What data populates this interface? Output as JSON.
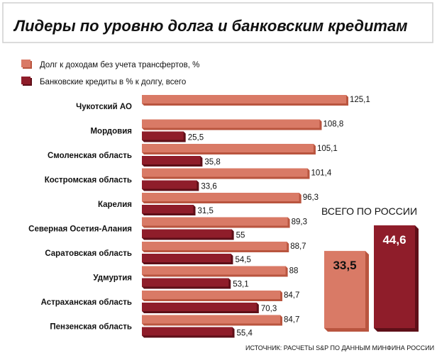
{
  "title": "Лидеры по уровню долга и банковским кредитам",
  "legend": {
    "items": [
      {
        "label": "Долг к доходам без учета трансфертов, %",
        "color": "#d97a66"
      },
      {
        "label": "Банковские кредиты в % к долгу, всего",
        "color": "#8f1d2a"
      }
    ]
  },
  "source": "ИСТОЧНИК: РАСЧЕТЫ S&P ПО ДАННЫМ МИНФИНА РОССИИ",
  "total": {
    "heading": "ВСЕГО ПО РОССИИ",
    "debt_label": "33,5",
    "credit_label": "44,6",
    "debt_value": 33.5,
    "credit_value": 44.6
  },
  "colors": {
    "debt": "#d97a66",
    "credit": "#8f1d2a",
    "debt_side": "#b9553f",
    "credit_side": "#5e0f18"
  },
  "chart_data": {
    "type": "bar",
    "orientation": "horizontal",
    "title": "Лидеры по уровню долга и банковским кредитам",
    "categories": [
      "Чукотский АО",
      "Мордовия",
      "Смоленская область",
      "Костромская область",
      "Карелия",
      "Северная Осетия-Алания",
      "Саратовская область",
      "Удмуртия",
      "Астраханская область",
      "Пензенская область"
    ],
    "series": [
      {
        "name": "Долг к доходам без учета трансфертов, %",
        "values": [
          125.1,
          108.8,
          105.1,
          101.4,
          96.3,
          89.3,
          88.7,
          88,
          84.7,
          84.7
        ],
        "labels": [
          "125,1",
          "108,8",
          "105,1",
          "101,4",
          "96,3",
          "89,3",
          "88,7",
          "88",
          "84,7",
          "84,7"
        ]
      },
      {
        "name": "Банковские кредиты в % к долгу, всего",
        "values": [
          null,
          25.5,
          35.8,
          33.6,
          31.5,
          55,
          54.5,
          53.1,
          70.3,
          55.4
        ],
        "labels": [
          "",
          "25,5",
          "35,8",
          "33,6",
          "31,5",
          "55",
          "54,5",
          "53,1",
          "70,3",
          "55,4"
        ]
      }
    ],
    "xlim": [
      0,
      125.1
    ],
    "grid": false,
    "legend_position": "top-left"
  }
}
